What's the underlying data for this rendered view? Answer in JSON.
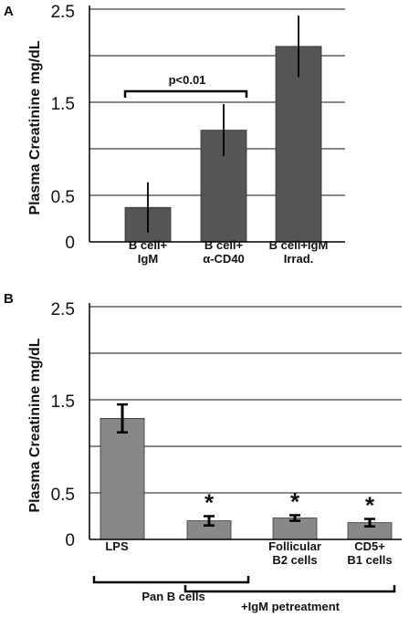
{
  "chart_data": [
    {
      "panel": "A",
      "type": "bar",
      "ylabel": "Plasma Creatinine  mg/dL",
      "ylim": [
        0,
        2.5
      ],
      "yticks": [
        "0",
        "0.5",
        "1.5",
        "2.5"
      ],
      "gridlines": [
        0.5,
        1.0,
        1.5,
        2.0,
        2.5
      ],
      "grid": true,
      "categories": [
        [
          "B cell+",
          "IgM"
        ],
        [
          "B cell+",
          "α-CD40"
        ],
        [
          "B cell+IgM",
          "Irrad."
        ]
      ],
      "values": [
        0.37,
        1.2,
        2.1
      ],
      "errors": [
        0.27,
        0.28,
        0.33
      ],
      "bar_color": "#555555",
      "annotations": [
        {
          "type": "bracket",
          "from": 0,
          "to": 1,
          "y": 1.65,
          "label": "p<0.01"
        }
      ]
    },
    {
      "panel": "B",
      "type": "bar",
      "ylabel": "Plasma Creatinine  mg/dL",
      "ylim": [
        0,
        2.5
      ],
      "yticks": [
        "0",
        "0.5",
        "1.5",
        "2.5"
      ],
      "gridlines": [
        0.5,
        1.0,
        1.5,
        2.0,
        2.5
      ],
      "grid": true,
      "categories": [
        [
          "LPS"
        ],
        [
          ""
        ],
        [
          "Follicular",
          "B2 cells"
        ],
        [
          "CD5+",
          "B1 cells"
        ]
      ],
      "values": [
        1.3,
        0.2,
        0.23,
        0.18
      ],
      "errors": [
        0.15,
        0.05,
        0.03,
        0.04
      ],
      "significance": [
        "",
        "*",
        "*",
        "*"
      ],
      "bar_color": "#888888",
      "group_labels": [
        {
          "label": "Pan B cells",
          "from": 0,
          "to": 1
        },
        {
          "label": "+IgM petreatment",
          "from": 1,
          "to": 3
        }
      ]
    }
  ]
}
